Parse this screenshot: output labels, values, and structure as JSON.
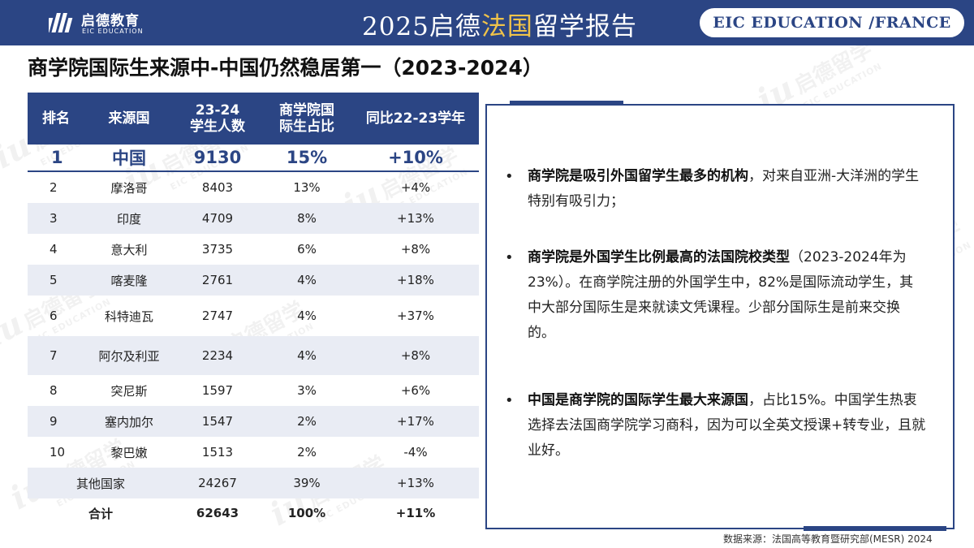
{
  "header": {
    "logo_cn": "启德教育",
    "logo_en": "EIC EDUCATION",
    "title_part1": "2025启德",
    "title_highlight": "法国",
    "title_part2": "留学报告",
    "badge": "EIC EDUCATION /FRANCE"
  },
  "watermark": {
    "mark": "iu",
    "cn": "启德留学",
    "en": "EIC EDUCATION"
  },
  "page_title": "商学院国际生来源中-中国仍然稳居第一（2023-2024）",
  "table": {
    "headers": {
      "rank": "排名",
      "country": "来源国",
      "students_l1": "23-24",
      "students_l2": "学生人数",
      "share_l1": "商学院国",
      "share_l2": "际生占比",
      "yoy": "同比22-23学年"
    },
    "rows": [
      {
        "rank": "1",
        "country": "中国",
        "students": "9130",
        "share": "15%",
        "yoy": "+10%"
      },
      {
        "rank": "2",
        "country": "摩洛哥",
        "students": "8403",
        "share": "13%",
        "yoy": "+4%"
      },
      {
        "rank": "3",
        "country": "印度",
        "students": "4709",
        "share": "8%",
        "yoy": "+13%"
      },
      {
        "rank": "4",
        "country": "意大利",
        "students": "3735",
        "share": "6%",
        "yoy": "+8%"
      },
      {
        "rank": "5",
        "country": "喀麦隆",
        "students": "2761",
        "share": "4%",
        "yoy": "+18%"
      },
      {
        "rank": "6",
        "country": "科特迪瓦",
        "students": "2747",
        "share": "4%",
        "yoy": "+37%"
      },
      {
        "rank": "7",
        "country": "阿尔及利亚",
        "students": "2234",
        "share": "4%",
        "yoy": "+8%"
      },
      {
        "rank": "8",
        "country": "突尼斯",
        "students": "1597",
        "share": "3%",
        "yoy": "+6%"
      },
      {
        "rank": "9",
        "country": "塞内加尔",
        "students": "1547",
        "share": "2%",
        "yoy": "+17%"
      },
      {
        "rank": "10",
        "country": "黎巴嫩",
        "students": "1513",
        "share": "2%",
        "yoy": "-4%"
      },
      {
        "rank": "",
        "country": "其他国家",
        "students": "24267",
        "share": "39%",
        "yoy": "+13%"
      }
    ],
    "total": {
      "label": "合计",
      "students": "62643",
      "share": "100%",
      "yoy": "+11%"
    }
  },
  "panel": {
    "bullet_symbol": "•",
    "bullets": [
      {
        "bold": "商学院是吸引外国留学生最多的机构",
        "text": "，对来自亚洲-大洋洲的学生特别有吸引力；"
      },
      {
        "bold": "商学院是外国学生比例最高的法国院校类型",
        "text": "（2023-2024年为23%）。在商学院注册的外国学生中，82%是国际流动学生，其中大部分国际生是来就读文凭课程。少部分国际生是前来交换的。"
      },
      {
        "bold": "中国是商学院的国际学生最大来源国",
        "text": "，占比15%。中国学生热衷选择去法国商学院学习商科，因为可以全英文授课+转专业，且就业好。"
      }
    ]
  },
  "source": "数据来源：法国高等教育暨研究部(MESR) 2024",
  "colors": {
    "primary": "#2b4584",
    "accent": "#f0c34a",
    "row_alt": "#e9ecf4"
  }
}
